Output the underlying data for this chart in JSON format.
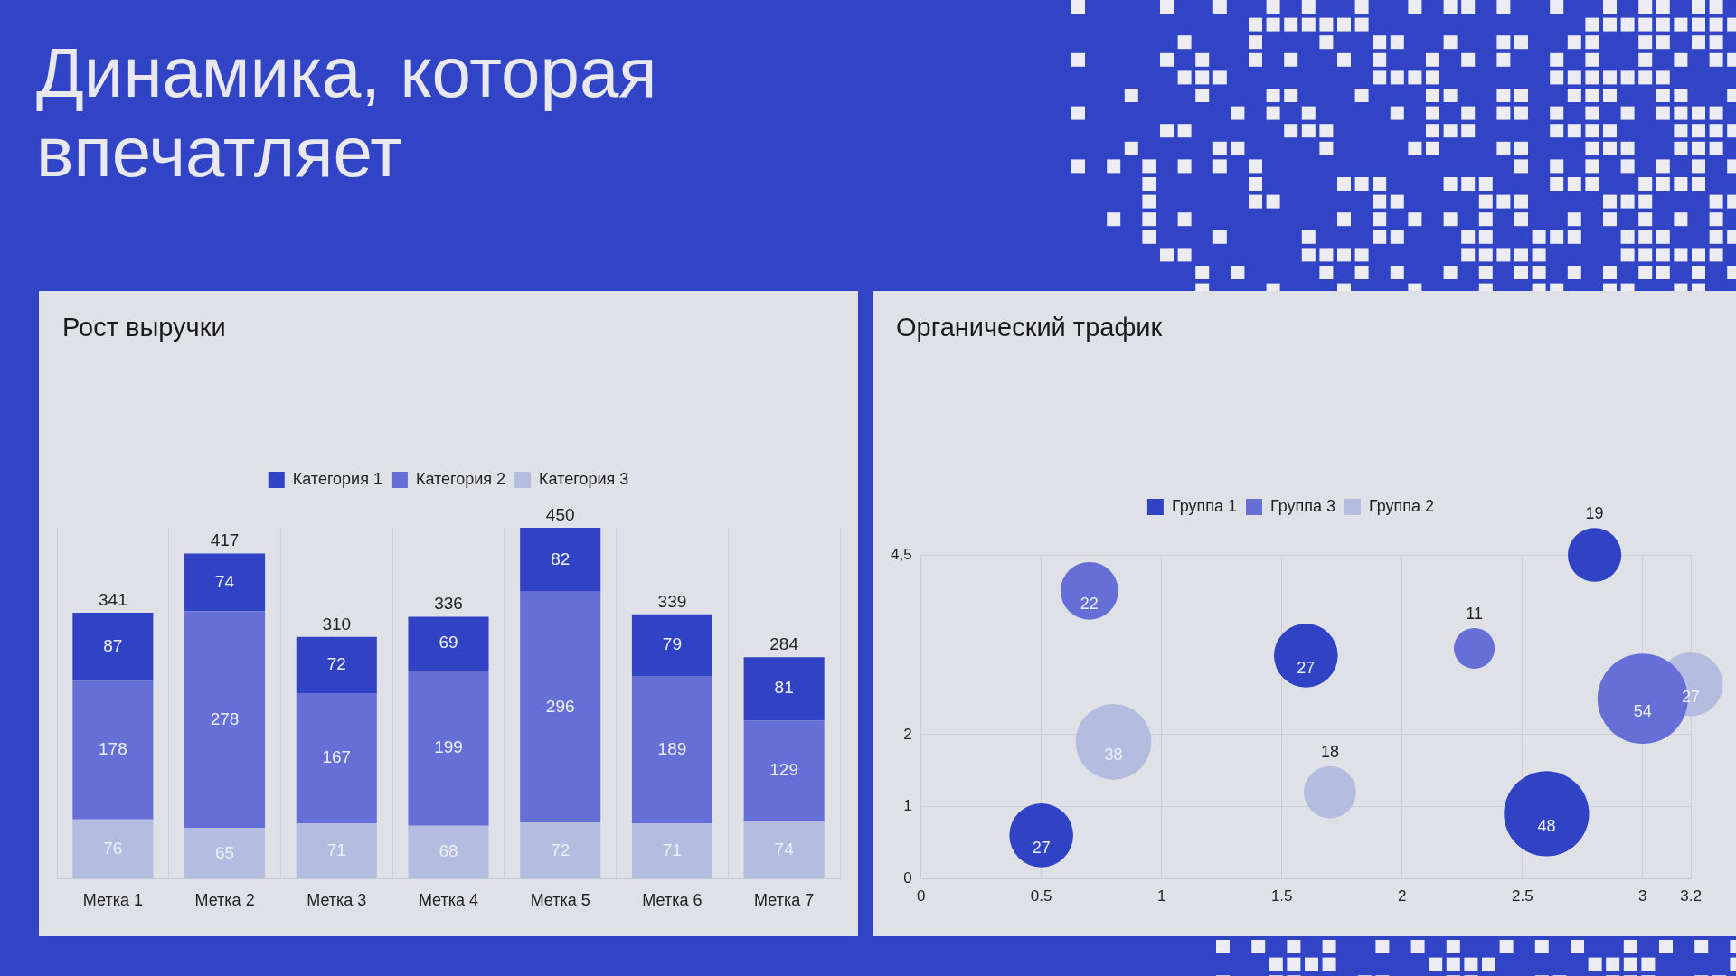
{
  "chart_data": [
    {
      "type": "other",
      "title": "Динамика, которая впечатляет"
    },
    {
      "type": "bar",
      "title": "Рост выручки",
      "categories": [
        "Метка 1",
        "Метка 2",
        "Метка 3",
        "Метка 4",
        "Метка 5",
        "Метка 6",
        "Метка 7"
      ],
      "stacked": true,
      "data_labels": true,
      "legend": "top",
      "grid": "x",
      "tick_labels": "x",
      "series": [
        {
          "name": "Категория 3",
          "color": "#b4bcdf",
          "values": [
            76,
            65,
            71,
            68,
            72,
            71,
            74
          ]
        },
        {
          "name": "Категория 2",
          "color": "#666fd6",
          "values": [
            178,
            278,
            167,
            199,
            296,
            189,
            129
          ]
        },
        {
          "name": "Категория 1",
          "color": "#3043c5",
          "values": [
            87,
            74,
            72,
            69,
            82,
            79,
            81
          ]
        }
      ],
      "totals": [
        "341",
        "417",
        "310",
        "336",
        "450",
        "339",
        "284"
      ]
    },
    {
      "type": "bubble",
      "title": "Органический трафик",
      "xlim": [
        0,
        3.2
      ],
      "xticks": [
        0,
        0.5,
        1,
        1.5,
        2,
        2.5,
        3,
        3.2
      ],
      "ylim": [
        0,
        4.5
      ],
      "yticks": [
        0,
        1,
        2,
        {
          "value": 4.5,
          "label": "4,5"
        }
      ],
      "grid": true,
      "legend": "top",
      "series": [
        {
          "name": "Группа 1",
          "color": "#3043c5",
          "x": [
            0.5,
            1.6,
            2.6,
            2.8
          ],
          "values": [
            0.6,
            3.1,
            0.9,
            4.5
          ],
          "sizes": [
            27,
            27,
            48,
            19
          ],
          "value_labels": [
            "27",
            "27",
            "48",
            "19"
          ]
        },
        {
          "name": "Группа 3",
          "color": "#666fd6",
          "x": [
            0.7,
            2.3,
            3.0
          ],
          "values": [
            4.0,
            3.2,
            2.5
          ],
          "sizes": [
            22,
            11,
            54
          ],
          "value_labels": [
            "22",
            "11",
            "54"
          ]
        },
        {
          "name": "Группа 2",
          "color": "#b4bcdf",
          "x": [
            0.8,
            1.7,
            3.2
          ],
          "values": [
            1.9,
            1.2,
            2.7
          ],
          "sizes": [
            38,
            18,
            27
          ],
          "value_labels": [
            "38",
            "18",
            "27"
          ]
        }
      ]
    }
  ]
}
